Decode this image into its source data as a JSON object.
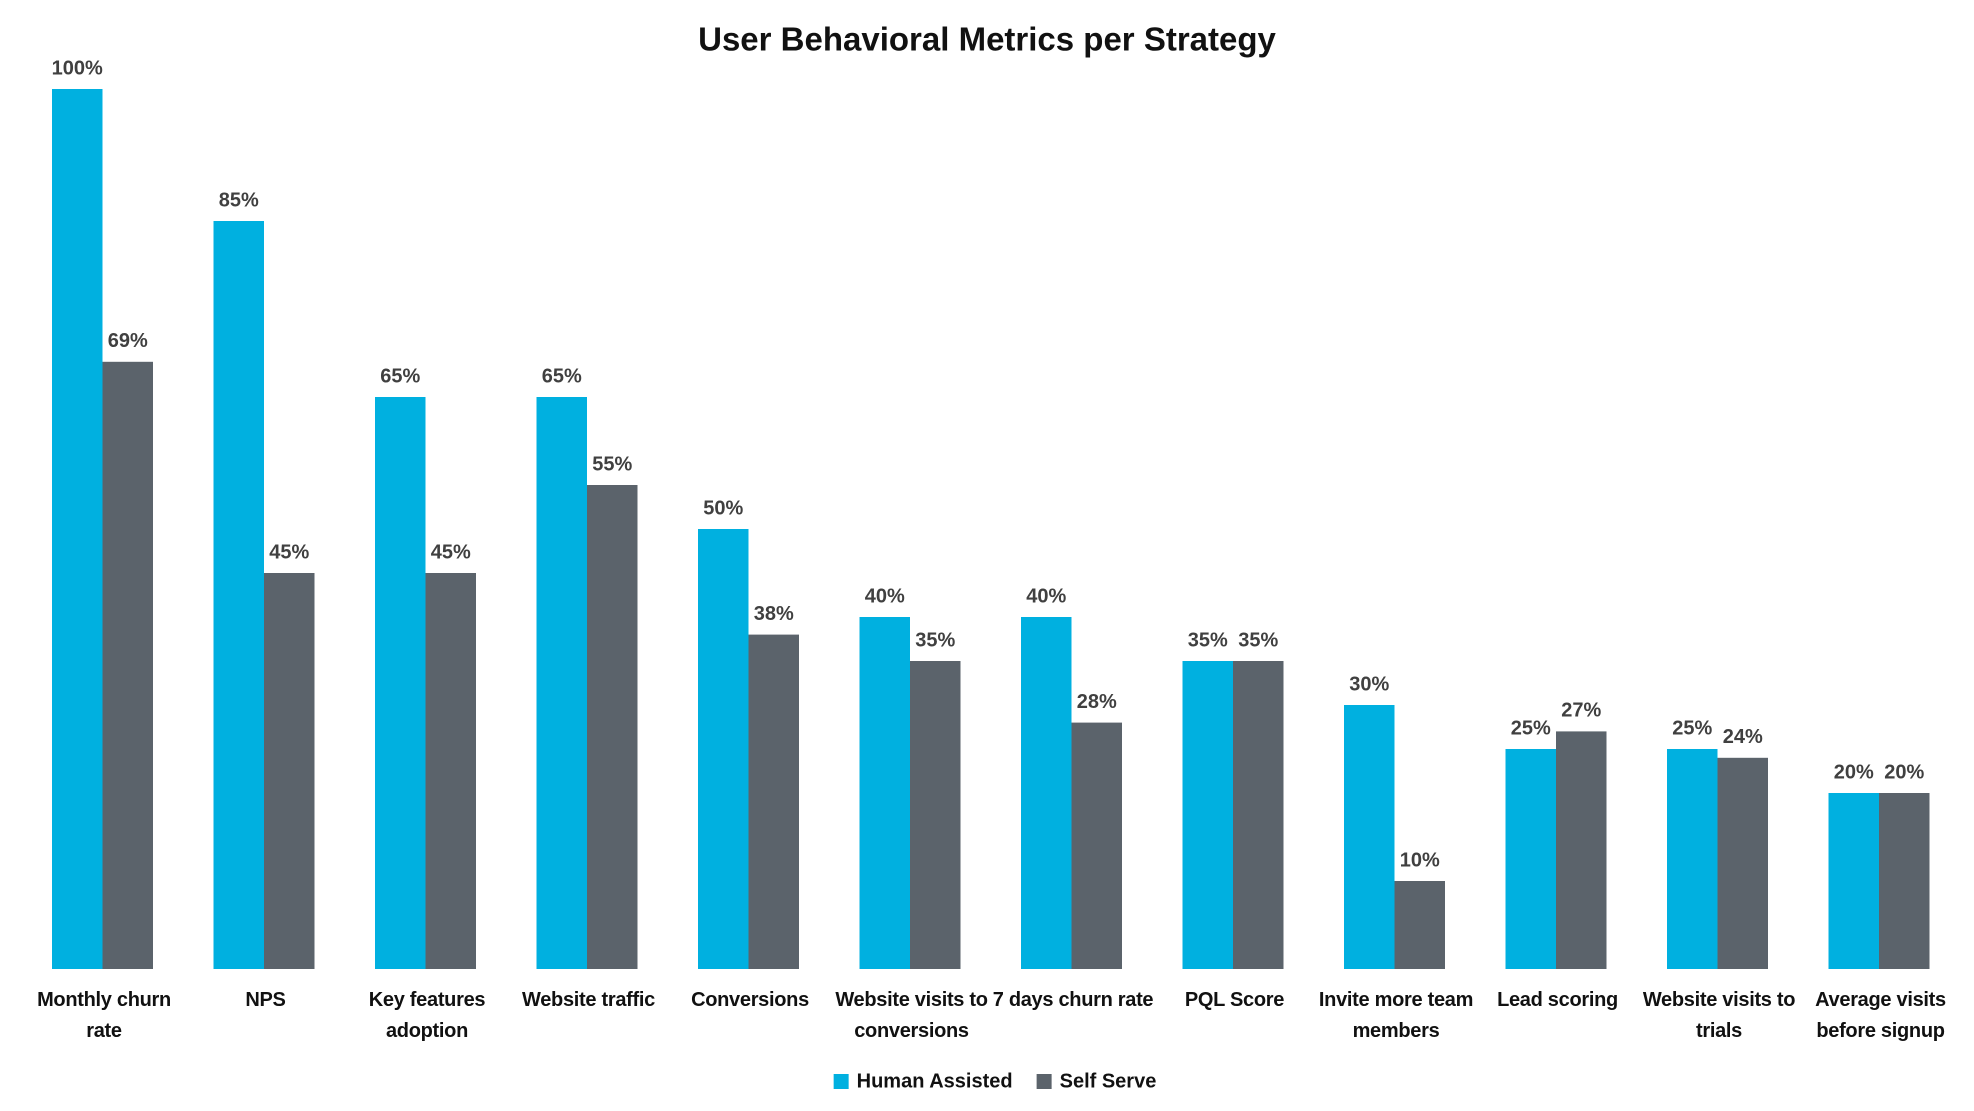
{
  "chart_data": {
    "type": "bar",
    "title": "User Behavioral Metrics per Strategy",
    "categories": [
      "Monthly churn rate",
      "NPS",
      "Key features adoption",
      "Website traffic",
      "Conversions",
      "Website visits to conversions",
      "7 days churn rate",
      "PQL Score",
      "Invite more team members",
      "Lead scoring",
      "Website visits to trials",
      "Average visits before signup"
    ],
    "series": [
      {
        "name": "Human Assisted",
        "color": "#00b0e0",
        "values": [
          100,
          85,
          65,
          65,
          50,
          40,
          40,
          35,
          30,
          25,
          25,
          20
        ],
        "value_labels": [
          "100%",
          "85%",
          "65%",
          "65%",
          "50%",
          "40%",
          "40%",
          "35%",
          "30%",
          "25%",
          "25%",
          "20%"
        ]
      },
      {
        "name": "Self Serve",
        "color": "#5b636b",
        "values": [
          69,
          45,
          45,
          55,
          38,
          35,
          28,
          35,
          10,
          27,
          24,
          20
        ],
        "value_labels": [
          "69%",
          "45%",
          "45%",
          "55%",
          "38%",
          "35%",
          "28%",
          "35%",
          "10%",
          "27%",
          "24%",
          "20%"
        ]
      }
    ],
    "legend": "bottom"
  }
}
